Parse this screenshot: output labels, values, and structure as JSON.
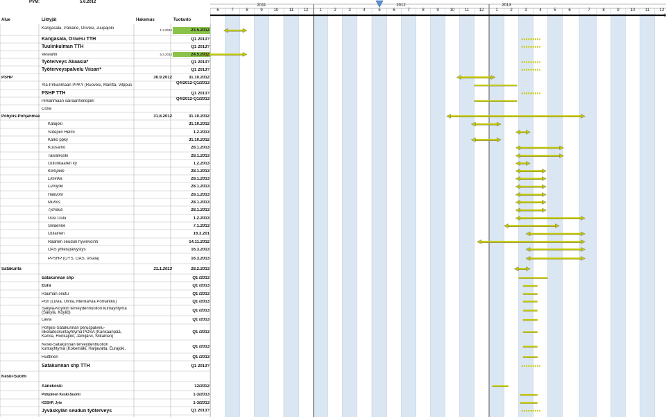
{
  "pvm_label": "PVM:",
  "pvm_date": "5.6.2012",
  "headers": {
    "alue": "Alue",
    "liittyjat": "Liittyjät",
    "hakemus": "Hakemus",
    "tuotanto": "Tuotanto"
  },
  "years": [
    "2011",
    "2012",
    "2013"
  ],
  "months": [
    "6",
    "7",
    "8",
    "9",
    "10",
    "11",
    "12",
    "1",
    "2",
    "3",
    "4",
    "5",
    "6",
    "7",
    "8",
    "9",
    "10",
    "11",
    "12",
    "1",
    "2",
    "3",
    "4",
    "5",
    "6",
    "7",
    "8",
    "9",
    "10",
    "11",
    "12"
  ],
  "current_month_marker": "5",
  "colors": {
    "arrow": "#c4c800",
    "stripe": "#dbe6f3",
    "highlight": "#8bc34a",
    "dotted": "#c8c800"
  },
  "rows": [
    {
      "alue": "",
      "liittyja": "Kangasala, Pälkäne, Orivesi, Juupajoki",
      "style": "sm2",
      "hakemus": "1.3.2012",
      "hs": "xs",
      "tuotanto": "23.5.2012",
      "hl": true,
      "bar": {
        "type": "arrow",
        "from": 0.4,
        "to": 2.0
      }
    },
    {
      "alue": "",
      "liittyja": "Kangasala, Orivesi TTH",
      "style": "big",
      "hakemus": "",
      "tuotanto": "Q1 2013?",
      "bar": {
        "type": "dots",
        "from": 20.7,
        "to": 22.0
      }
    },
    {
      "alue": "",
      "liittyja": "Tuulinkulman TTH",
      "style": "big",
      "hakemus": "",
      "tuotanto": "Q1 2013?",
      "bar": {
        "type": "dots",
        "from": 20.7,
        "to": 22.0
      }
    },
    {
      "alue": "",
      "liittyja": "Vesilahti",
      "style": "",
      "hakemus": "5.3.2012",
      "hs": "xs",
      "tuotanto": "24.5.2012",
      "hl": true,
      "bar": {
        "type": "arrow",
        "from": -1.0,
        "to": 2.0
      }
    },
    {
      "alue": "",
      "liittyja": "Työterveys Akaasia*",
      "style": "big",
      "hakemus": "",
      "tuotanto": "Q1 2013?",
      "bar": {
        "type": "dots",
        "from": 20.7,
        "to": 22.0
      }
    },
    {
      "alue": "",
      "liittyja": "Työterveyspalvelu Viisari*",
      "style": "big",
      "hakemus": "",
      "tuotanto": "Q1 2013?",
      "bar": {
        "type": "dots",
        "from": 20.7,
        "to": 22.0
      }
    },
    {
      "alue": "PSHP",
      "liittyja": "",
      "style": "",
      "hakemus": "30.9.2012",
      "tuotanto": "31.10.2012",
      "bar": {
        "type": "arrow",
        "from": 16.3,
        "to": 18.9
      }
    },
    {
      "alue": "",
      "liittyja": "Ylä-Pirkanmaan PPKY (Ruovesi, Mänttä, Vilppula)",
      "style": "",
      "hakemus": "",
      "tuotanto": "Q4/2012-Q1/2013",
      "bar": {
        "type": "line",
        "from": 17.5,
        "to": 20.4
      }
    },
    {
      "alue": "",
      "liittyja": "PSHP TTH",
      "style": "big",
      "hakemus": "",
      "tuotanto": "Q1 2013?",
      "bar": {
        "type": "dots",
        "from": 20.7,
        "to": 22.0
      }
    },
    {
      "alue": "",
      "liittyja": "Pirkanmaan sairaanhoitopiiri",
      "style": "",
      "hakemus": "",
      "tuotanto": "Q4/2012-Q1/2013",
      "bar": {
        "type": "line",
        "from": 17.5,
        "to": 20.4
      }
    },
    {
      "alue": "",
      "liittyja": "Coxa",
      "style": "",
      "hakemus": "",
      "tuotanto": "",
      "bar": null
    },
    {
      "alue": "Pohjois-Pohjanmaa",
      "liittyja": "",
      "style": "",
      "hakemus": "31.8.2012",
      "tuotanto": "31.10.2012",
      "bar": {
        "type": "arrow",
        "from": 15.6,
        "to": 24.8
      }
    },
    {
      "alue": "",
      "liittyja": "Kalajoki",
      "style": "ind",
      "hakemus": "",
      "tuotanto": "31.10.2012",
      "bar": {
        "type": "arrow",
        "from": 17.3,
        "to": 19.3
      }
    },
    {
      "alue": "",
      "liittyja": "Sotepiiri Helmi",
      "style": "ind",
      "hakemus": "",
      "tuotanto": "1.2.2013",
      "bar": {
        "type": "arrow",
        "from": 20.3,
        "to": 21.3
      }
    },
    {
      "alue": "",
      "liittyja": "Kallio ppky",
      "style": "ind",
      "hakemus": "",
      "tuotanto": "31.10.2012",
      "bar": {
        "type": "arrow",
        "from": 17.3,
        "to": 19.3
      }
    },
    {
      "alue": "",
      "liittyja": "Kuusamo",
      "style": "ind",
      "hakemus": "",
      "tuotanto": "28.1.2013",
      "bar": {
        "type": "arrow",
        "from": 20.3,
        "to": 23.6
      }
    },
    {
      "alue": "",
      "liittyja": "Taivalkoski",
      "style": "ind",
      "hakemus": "",
      "tuotanto": "28.1.2013",
      "bar": {
        "type": "arrow",
        "from": 20.3,
        "to": 23.6
      }
    },
    {
      "alue": "",
      "liittyja": "Oulunkaaren ky",
      "style": "ind",
      "hakemus": "",
      "tuotanto": "1.2.2013",
      "bar": {
        "type": "arrow",
        "from": 20.3,
        "to": 21.3
      }
    },
    {
      "alue": "",
      "liittyja": "Kempele",
      "style": "ind it",
      "hakemus": "",
      "tuotanto": "28.1.2013",
      "bar": {
        "type": "arrow",
        "from": 20.3,
        "to": 22.4
      }
    },
    {
      "alue": "",
      "liittyja": "Liminka",
      "style": "ind it",
      "hakemus": "",
      "tuotanto": "28.1.2013",
      "bar": {
        "type": "arrow",
        "from": 20.3,
        "to": 22.4
      }
    },
    {
      "alue": "",
      "liittyja": "Lumijoki",
      "style": "ind it",
      "hakemus": "",
      "tuotanto": "28.1.2013",
      "bar": {
        "type": "arrow",
        "from": 20.3,
        "to": 22.4
      }
    },
    {
      "alue": "",
      "liittyja": "Hailuoto",
      "style": "ind it",
      "hakemus": "",
      "tuotanto": "28.1.2013",
      "bar": {
        "type": "arrow",
        "from": 20.3,
        "to": 22.4
      }
    },
    {
      "alue": "",
      "liittyja": "Muhos",
      "style": "ind it",
      "hakemus": "",
      "tuotanto": "28.1.2013",
      "bar": {
        "type": "arrow",
        "from": 20.3,
        "to": 22.4
      }
    },
    {
      "alue": "",
      "liittyja": "Tyrnävä",
      "style": "ind it",
      "hakemus": "",
      "tuotanto": "28.1.2013",
      "bar": {
        "type": "arrow",
        "from": 20.3,
        "to": 22.4
      }
    },
    {
      "alue": "",
      "liittyja": "Uusi Oulu",
      "style": "ind",
      "hakemus": "",
      "tuotanto": "1.2.2013",
      "bar": {
        "type": "arrow",
        "from": 20.3,
        "to": 24.8
      }
    },
    {
      "alue": "",
      "liittyja": "Seläenne",
      "style": "ind",
      "hakemus": "",
      "tuotanto": "7.1.2013",
      "bar": {
        "type": "arrow",
        "from": 19.5,
        "to": 23.3
      }
    },
    {
      "alue": "",
      "liittyja": "Oulainen",
      "style": "ind",
      "hakemus": "",
      "tuotanto": "16.3.201",
      "bar": {
        "type": "arrow",
        "from": 21.0,
        "to": 24.8
      }
    },
    {
      "alue": "",
      "liittyja": "Raahen seudun hyvinvointi",
      "style": "ind",
      "hakemus": "",
      "tuotanto": "14.11.2012",
      "bar": {
        "type": "arrow",
        "from": 17.7,
        "to": 24.8
      }
    },
    {
      "alue": "",
      "liittyja": "OAS yhteispäivystys",
      "style": "ind",
      "hakemus": "",
      "tuotanto": "16.3.2013",
      "bar": {
        "type": "arrow",
        "from": 21.0,
        "to": 24.8
      }
    },
    {
      "alue": "",
      "liittyja": "PPSHP (OYS, OAS, Visala)",
      "style": "ind",
      "hakemus": "",
      "tuotanto": "16.3.2013",
      "bar": {
        "type": "arrow",
        "from": 21.0,
        "to": 24.8
      }
    },
    {
      "alue": "Satakunta",
      "liittyja": "",
      "style": "",
      "hakemus": "31.1.2013",
      "hs": "it",
      "tuotanto": "28.2.2013",
      "bar": {
        "type": "arrow",
        "from": 20.2,
        "to": 21.3
      }
    },
    {
      "alue": "",
      "liittyja": "Satakunnan shp",
      "style": "b",
      "hakemus": "",
      "tuotanto": "Q1 /2013",
      "bar": {
        "type": "line",
        "from": 20.5,
        "to": 22.5
      }
    },
    {
      "alue": "",
      "liittyja": "Eura",
      "style": "b",
      "hakemus": "",
      "tuotanto": "Q1 /2013",
      "bar": {
        "type": "line",
        "from": 20.8,
        "to": 21.8
      }
    },
    {
      "alue": "",
      "liittyja": "Rauman seutu",
      "style": "",
      "hakemus": "",
      "tuotanto": "Q1 /2013",
      "bar": {
        "type": "line",
        "from": 20.8,
        "to": 21.8
      }
    },
    {
      "alue": "",
      "liittyja": "Pori (Luvia, Ulvila, Merikarvia Pomarkku)",
      "style": "",
      "hakemus": "",
      "tuotanto": "Q1 /2013",
      "bar": {
        "type": "line",
        "from": 20.8,
        "to": 21.8
      }
    },
    {
      "alue": "",
      "liittyja": "Säkylä-Köyliön terveydenhuollon kuntayhtymä (Säkylä, Köyliö)",
      "style": "sm2",
      "hakemus": "",
      "tuotanto": "Q1 /2013",
      "bar": {
        "type": "line",
        "from": 20.8,
        "to": 21.8
      }
    },
    {
      "alue": "",
      "liittyja": "Lavia",
      "style": "",
      "hakemus": "",
      "tuotanto": "Q1 /2013",
      "bar": {
        "type": "line",
        "from": 20.8,
        "to": 21.8
      }
    },
    {
      "alue": "",
      "liittyja": "Pohjois-Satakunnan peruspalvelu-liikelaitoskuntayhtymä POSA (Kankaanpää, Karvia, Honkajoki, Jämijärvi, Siikainen)",
      "style": "sm3",
      "hakemus": "",
      "tuotanto": "Q1 /2013",
      "bar": {
        "type": "line",
        "from": 20.8,
        "to": 21.8
      }
    },
    {
      "alue": "",
      "liittyja": "Keski-Satakunnan terveydenhuollon kuntayhtymä (Kokemäki, Harjavalta, Eurajoki, Nakkila)",
      "style": "sm2",
      "hakemus": "",
      "tuotanto": "Q1 /2013",
      "bar": {
        "type": "line",
        "from": 20.8,
        "to": 21.8
      }
    },
    {
      "alue": "",
      "liittyja": "Huittinen",
      "style": "",
      "hakemus": "",
      "tuotanto": "Q1 /2013",
      "bar": {
        "type": "line",
        "from": 20.8,
        "to": 21.8
      }
    },
    {
      "alue": "",
      "liittyja": "Satakunnan shp TTH",
      "style": "big",
      "hakemus": "",
      "tuotanto": "Q1 2013?",
      "bar": {
        "type": "dots",
        "from": 20.7,
        "to": 22.0
      }
    },
    {
      "alue": "Keski-Suomi",
      "liittyja": "",
      "style": "",
      "hakemus": "",
      "tuotanto": "",
      "bar": null
    },
    {
      "alue": "",
      "liittyja": "Äänekoski",
      "style": "b",
      "hakemus": "",
      "tuotanto": "12/2012",
      "bar": {
        "type": "line",
        "from": 18.7,
        "to": 19.8
      }
    },
    {
      "alue": "",
      "liittyja": "Pohjoinen Keski-Suomi",
      "style": "b xs",
      "hakemus": "",
      "tuotanto": "1-3/2013",
      "bar": {
        "type": "line",
        "from": 20.6,
        "to": 21.8
      }
    },
    {
      "alue": "",
      "liittyja": "KSSHP, Jyte",
      "style": "b xs",
      "hakemus": "",
      "tuotanto": "1-3/2013",
      "bar": {
        "type": "line",
        "from": 20.6,
        "to": 21.8
      }
    },
    {
      "alue": "",
      "liittyja": "Jyväskylän seudun työterveys",
      "style": "big",
      "hakemus": "",
      "tuotanto": "Q1 2013?",
      "bar": {
        "type": "dots",
        "from": 20.7,
        "to": 22.0
      }
    }
  ]
}
